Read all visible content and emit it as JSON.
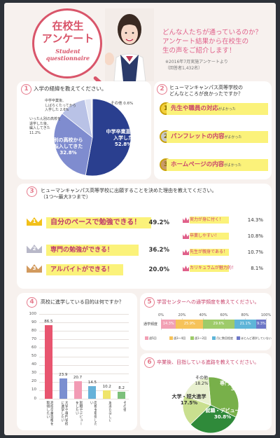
{
  "header": {
    "title_line1": "在校生",
    "title_line2": "アンケート",
    "subtitle_line1": "Student",
    "subtitle_line2": "questionnaire",
    "question_line1": "どんな人たちが通っているのか？",
    "question_line2": "アンケート結果から在校生の",
    "question_line3": "生の声をご紹介します！",
    "note_line1": "※2016年7月実施アンケートより",
    "note_line2": "（回答者1,432名）"
  },
  "q1": {
    "num": "1",
    "title": "入学の経緯を教えてください。",
    "slices": [
      {
        "label": "中学卒業直後に入学した",
        "pct": 52.8,
        "color": "#2a3f8f"
      },
      {
        "label": "別の高校から転入してきた",
        "pct": 32.8,
        "color": "#7f8ccf"
      },
      {
        "label": "いったん別の高校を退学した後、編入してきた",
        "pct": 11.2,
        "color": "#b9c2e6"
      },
      {
        "label": "中学卒業後、しばらくたってから入学した",
        "pct": 2.6,
        "color": "#dfe3f3"
      },
      {
        "label": "その他",
        "pct": 0.6,
        "color": "#eeeeee"
      }
    ],
    "label_main": "中学卒業直後に",
    "label_main2": "入学した",
    "val_main": "52.8%",
    "label_transfer": "別の高校から",
    "label_transfer2": "転入してきた",
    "val_transfer": "32.8%",
    "label_reenter1": "いったん別の高校を",
    "label_reenter2": "退学した後、",
    "label_reenter3": "編入してきた",
    "val_reenter": "11.2%",
    "label_later1": "中学卒業後、",
    "label_later2": "しばらくたってから",
    "label_later3": "入学した 2.6%",
    "label_other": "その他 0.6%"
  },
  "q2": {
    "num": "2",
    "title_line1": "ヒューマンキャンパス高等学校の",
    "title_line2": "どんなところが良かったですか？",
    "items": [
      {
        "rank": "1",
        "text": "先生や職員の対応",
        "suffix": "がよかった"
      },
      {
        "rank": "2",
        "text": "パンフレットの内容",
        "suffix": "がよかった"
      },
      {
        "rank": "3",
        "text": "ホームページの内容",
        "suffix": "がよかった"
      }
    ]
  },
  "q3": {
    "num": "3",
    "title_line1": "ヒューマンキャンパス高等学校に出願することを決めた理由を教えてください。",
    "title_line2": "（1つ～最大3つまで）",
    "top": [
      {
        "rank": "1",
        "text": "自分のペースで勉強できる！",
        "pct": "49.2%"
      },
      {
        "rank": "2",
        "text": "専門の勉強ができる！",
        "pct": "36.2%"
      },
      {
        "rank": "3",
        "text": "アルバイトができる！",
        "pct": "20.0%"
      }
    ],
    "others": [
      {
        "rank": "4",
        "text": "実力が身に付く！",
        "pct": "14.3%"
      },
      {
        "rank": "5",
        "text": "卒業しやすい！",
        "pct": "10.8%"
      },
      {
        "rank": "6",
        "text": "先生が親身である！",
        "pct": "10.7%"
      },
      {
        "rank": "7",
        "text": "カリキュラムが魅力的！",
        "pct": "8.1%"
      }
    ]
  },
  "q4": {
    "num": "4",
    "title": "高校に進学している目的は何ですか？",
    "yticks": [
      "100",
      "90",
      "80",
      "70",
      "60",
      "50",
      "40",
      "30",
      "20",
      "10",
      "0"
    ]
  },
  "chart_data": [
    {
      "type": "bar",
      "title": "高校に進学している目的は何ですか？",
      "categories": [
        "高校卒業資格を取得したい",
        "大学や専門学校に進学したい",
        "就職やデビューをしたい",
        "資格を取得したい",
        "友達がほしい",
        "その他"
      ],
      "values": [
        86.5,
        23.9,
        20.7,
        14.5,
        10.2,
        8.2
      ],
      "colors": [
        "#e8556f",
        "#7b8fd0",
        "#f29bb4",
        "#66b2d9",
        "#efe46a",
        "#7dc07b"
      ],
      "ylim": [
        0,
        100
      ]
    },
    {
      "type": "bar",
      "title": "学習センターへの通学頻度を教えてください。",
      "stacked": true,
      "orientation": "horizontal",
      "categories": [
        "通学頻度"
      ],
      "x_ticks": [
        "0%",
        "20%",
        "40%",
        "60%",
        "80%",
        "100%"
      ],
      "series": [
        {
          "name": "週5回",
          "value": 14.3,
          "color": "#f2a0b4"
        },
        {
          "name": "週3～4回",
          "value": 25.9,
          "color": "#f6c35a"
        },
        {
          "name": "週1～2回",
          "value": 29.6,
          "color": "#9ecb6a"
        },
        {
          "name": "月に数回程度",
          "value": 21.1,
          "color": "#5fb5d8"
        },
        {
          "name": "ほとんど通学していない",
          "value": 9.3,
          "color": "#6d77c7"
        }
      ]
    },
    {
      "type": "pie",
      "title": "卒業後、目指している進路を教えてください。",
      "slices": [
        {
          "label": "専門校・専門学校への進学",
          "value": 33.5,
          "color": "#78b04a"
        },
        {
          "label": "就職・デビュー",
          "value": 30.8,
          "color": "#2f8a3a"
        },
        {
          "label": "大学・短大進学",
          "value": 17.5,
          "color": "#c9df8f"
        },
        {
          "label": "その他",
          "value": 18.2,
          "color": "#e8f0cf"
        }
      ]
    }
  ],
  "q5": {
    "num": "5",
    "title": "学習センターへの通学頻度を教えてください。",
    "row_label": "通学頻度",
    "legend": [
      {
        "name": "週5回"
      },
      {
        "name": "週3～4回"
      },
      {
        "name": "週1～2回"
      },
      {
        "name": "月に数回程度"
      },
      {
        "name": "ほとんど通学していない"
      }
    ]
  },
  "q6": {
    "num": "6",
    "title": "卒業後、目指している進路を教えてください。",
    "lab_vocational1": "専門校・",
    "lab_vocational2": "専門学校への進学",
    "val_vocational": "33.5%",
    "lab_job": "就職・デビュー",
    "val_job": "30.8%",
    "lab_univ": "大学・短大進学",
    "val_univ": "17.5%",
    "lab_other": "その他",
    "val_other": "18.2%"
  }
}
